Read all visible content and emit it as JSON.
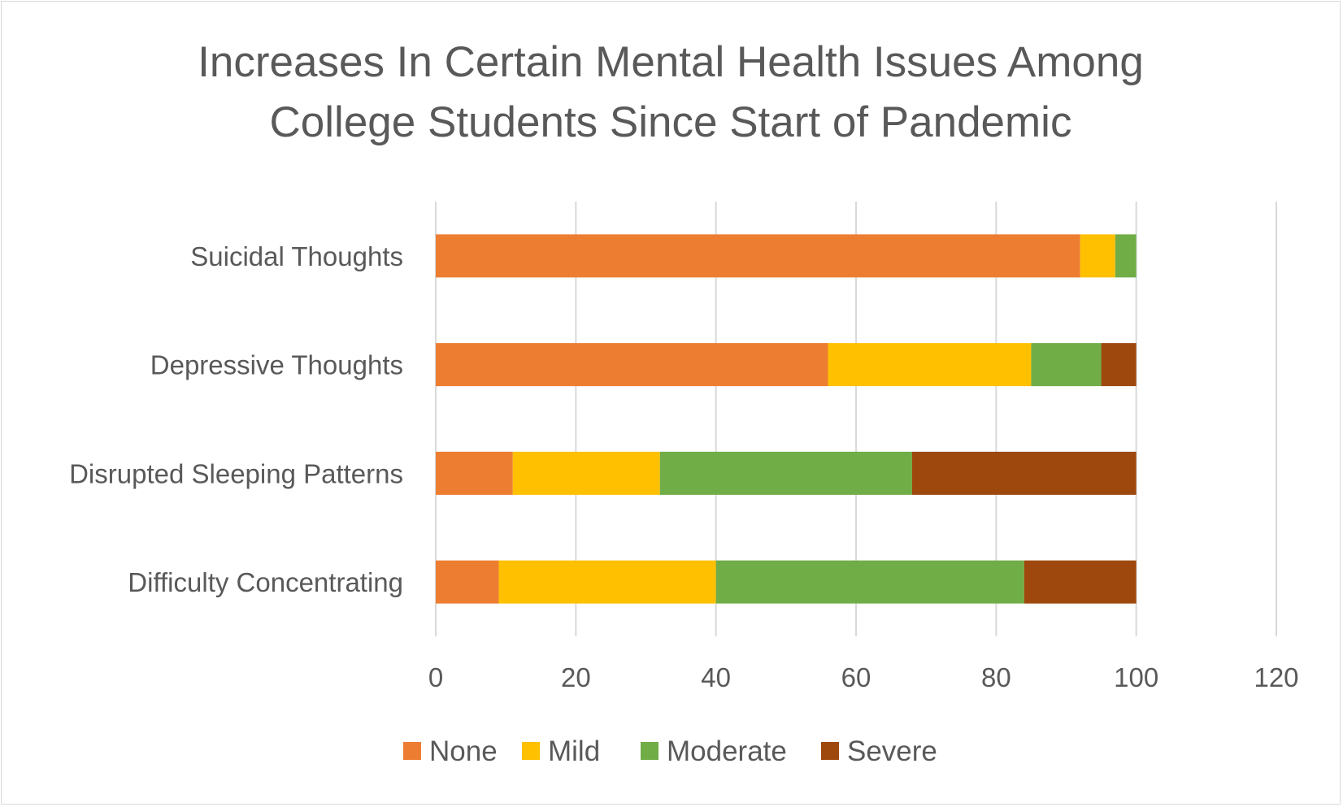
{
  "chart_data": {
    "type": "bar",
    "orientation": "horizontal",
    "stacked": true,
    "title": "Increases In Certain Mental Health Issues Among College Students Since Start of Pandemic",
    "title_lines": [
      "Increases In Certain Mental Health Issues Among",
      "College Students Since Start of Pandemic"
    ],
    "categories": [
      "Suicidal Thoughts",
      "Depressive Thoughts",
      "Disrupted Sleeping Patterns",
      "Difficulty Concentrating"
    ],
    "series": [
      {
        "name": "None",
        "color": "#ED7D31",
        "values": [
          92,
          56,
          11,
          9
        ]
      },
      {
        "name": "Mild",
        "color": "#FFC000",
        "values": [
          5,
          29,
          21,
          31
        ]
      },
      {
        "name": "Moderate",
        "color": "#70AD47",
        "values": [
          3,
          10,
          36,
          44
        ]
      },
      {
        "name": "Severe",
        "color": "#9E480E",
        "values": [
          0,
          5,
          32,
          16
        ]
      }
    ],
    "xlim": [
      0,
      120
    ],
    "xticks": [
      "0",
      "20",
      "40",
      "60",
      "80",
      "100",
      "120"
    ],
    "grid": true,
    "legend_position": "bottom"
  }
}
